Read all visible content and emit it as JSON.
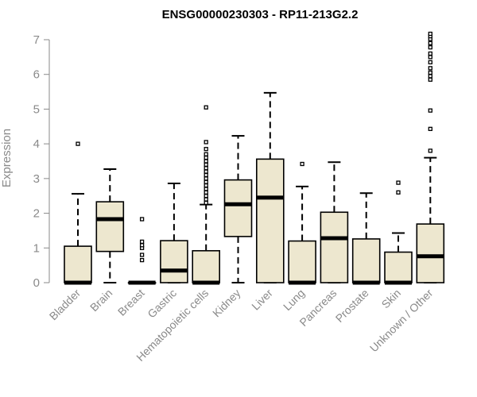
{
  "chart_data": {
    "type": "boxplot",
    "title": "ENSG00000230303 - RP11-213G2.2",
    "xlabel": "",
    "ylabel": "Expression",
    "ylim": [
      0,
      7
    ],
    "yticks": [
      0,
      1,
      2,
      3,
      4,
      5,
      6,
      7
    ],
    "box_fill": "#ede7cf",
    "box_stroke": "#000000",
    "categories": [
      "Bladder",
      "Brain",
      "Breast",
      "Gastric",
      "Hematopoietic cells",
      "Kidney",
      "Liver",
      "Lung",
      "Pancreas",
      "Prostate",
      "Skin",
      "Unknown / Other"
    ],
    "boxes": [
      {
        "category": "Bladder",
        "whisker_low": 0,
        "q1": 0,
        "median": 0,
        "q3": 1.05,
        "whisker_high": 2.56,
        "outliers": [
          4.0
        ]
      },
      {
        "category": "Brain",
        "whisker_low": 0,
        "q1": 0.9,
        "median": 1.83,
        "q3": 2.33,
        "whisker_high": 3.27,
        "outliers": []
      },
      {
        "category": "Breast",
        "whisker_low": 0,
        "q1": 0,
        "median": 0,
        "q3": 0,
        "whisker_high": 0,
        "outliers": [
          0.65,
          0.8,
          1.0,
          1.08,
          1.18,
          1.83
        ]
      },
      {
        "category": "Gastric",
        "whisker_low": 0,
        "q1": 0,
        "median": 0.35,
        "q3": 1.21,
        "whisker_high": 2.86,
        "outliers": []
      },
      {
        "category": "Hematopoietic cells",
        "whisker_low": 0,
        "q1": 0,
        "median": 0,
        "q3": 0.92,
        "whisker_high": 2.25,
        "outliers": [
          2.3,
          2.4,
          2.5,
          2.6,
          2.7,
          2.8,
          2.9,
          3.0,
          3.1,
          3.2,
          3.3,
          3.4,
          3.5,
          3.6,
          3.7,
          3.85,
          4.05,
          5.05
        ]
      },
      {
        "category": "Kidney",
        "whisker_low": 0,
        "q1": 1.33,
        "median": 2.26,
        "q3": 2.96,
        "whisker_high": 4.23,
        "outliers": []
      },
      {
        "category": "Liver",
        "whisker_low": 0,
        "q1": 0,
        "median": 2.45,
        "q3": 3.56,
        "whisker_high": 5.47,
        "outliers": []
      },
      {
        "category": "Lung",
        "whisker_low": 0,
        "q1": 0,
        "median": 0,
        "q3": 1.2,
        "whisker_high": 2.77,
        "outliers": [
          3.42
        ]
      },
      {
        "category": "Pancreas",
        "whisker_low": 0,
        "q1": 0,
        "median": 1.28,
        "q3": 2.03,
        "whisker_high": 3.47,
        "outliers": []
      },
      {
        "category": "Prostate",
        "whisker_low": 0,
        "q1": 0,
        "median": 0,
        "q3": 1.26,
        "whisker_high": 2.58,
        "outliers": []
      },
      {
        "category": "Skin",
        "whisker_low": 0,
        "q1": 0,
        "median": 0,
        "q3": 0.88,
        "whisker_high": 1.43,
        "outliers": [
          2.6,
          2.88
        ]
      },
      {
        "category": "Unknown / Other",
        "whisker_low": 0,
        "q1": 0,
        "median": 0.76,
        "q3": 1.69,
        "whisker_high": 3.6,
        "outliers": [
          3.8,
          4.43,
          4.96,
          5.85,
          5.95,
          6.05,
          6.18,
          6.35,
          6.5,
          6.6,
          6.78,
          6.9,
          7.02,
          7.1,
          7.17
        ]
      }
    ]
  }
}
